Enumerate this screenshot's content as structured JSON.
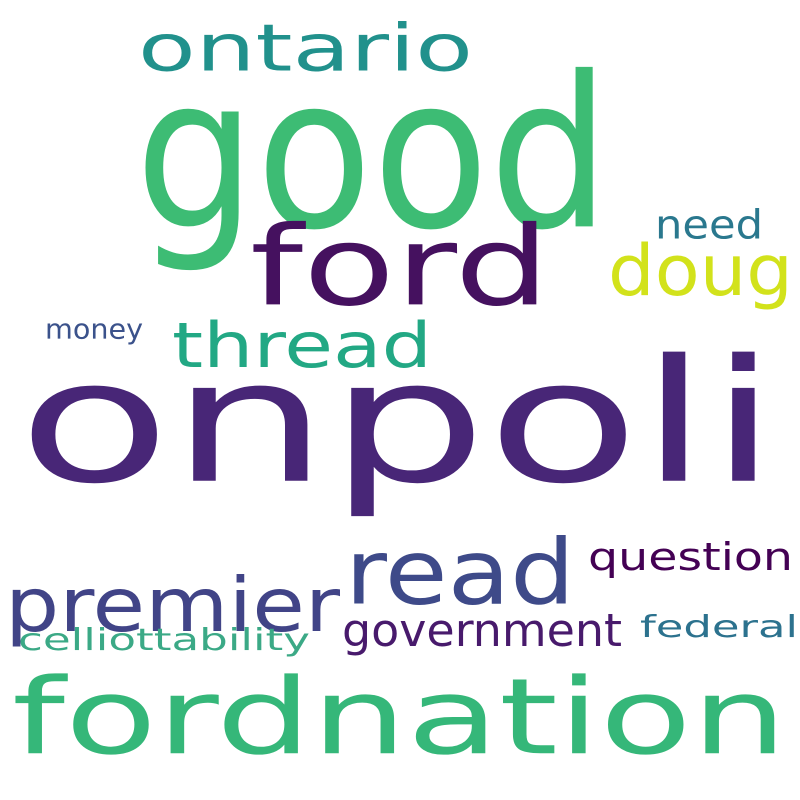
{
  "words": {
    "onpoli": {
      "text": "onpoli",
      "color": "#482677"
    },
    "good": {
      "text": "good",
      "color": "#3dbc74"
    },
    "fordnation": {
      "text": "fordnation",
      "color": "#35b779"
    },
    "ford": {
      "text": "ford",
      "color": "#45115f"
    },
    "read": {
      "text": "read",
      "color": "#3e4a89"
    },
    "premier": {
      "text": "premier",
      "color": "#414487"
    },
    "ontario": {
      "text": "ontario",
      "color": "#21918c"
    },
    "thread": {
      "text": "thread",
      "color": "#22a884"
    },
    "doug": {
      "text": "doug",
      "color": "#d2e21b"
    },
    "government": {
      "text": "government",
      "color": "#481a6c"
    },
    "question": {
      "text": "question",
      "color": "#440154"
    },
    "need": {
      "text": "need",
      "color": "#2a788e"
    },
    "federal": {
      "text": "federal",
      "color": "#2c728e"
    },
    "money": {
      "text": "money",
      "color": "#3b528b"
    },
    "celliottability": {
      "text": "celliottability",
      "color": "#3ba986"
    }
  }
}
